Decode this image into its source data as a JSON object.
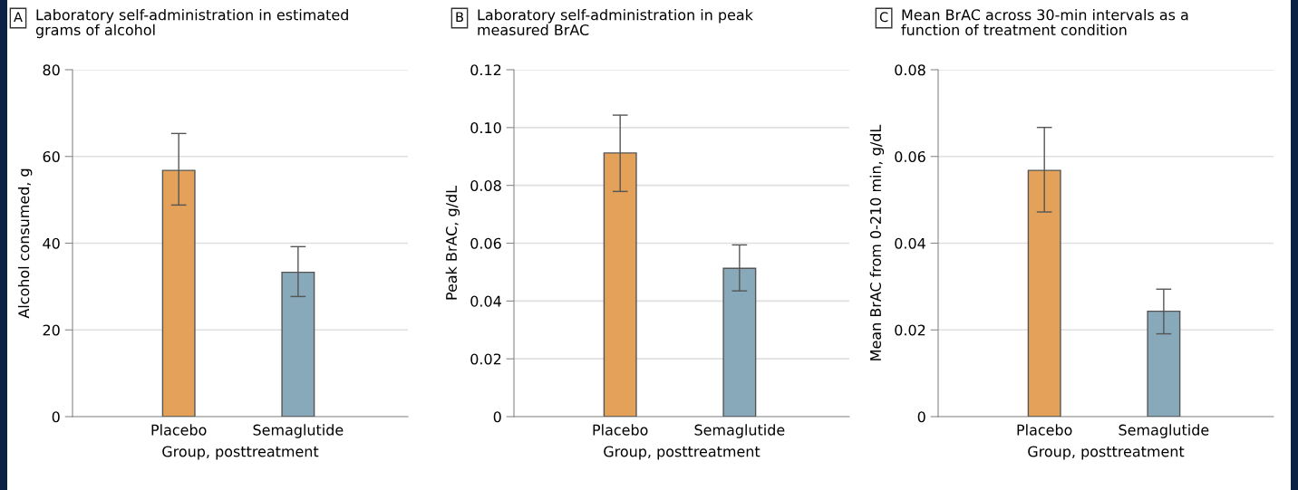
{
  "chart_data": [
    {
      "type": "bar",
      "annotations": [
        "A"
      ],
      "title": "Laboratory self-administration in estimated grams of alcohol",
      "xlabel": "Group, posttreatment",
      "ylabel": "Alcohol consumed, g",
      "categories": [
        "Placebo",
        "Semaglutide"
      ],
      "values": [
        56.8,
        33.3
      ],
      "colors": [
        "#e3a15a",
        "#87a9b9"
      ],
      "errors": [
        [
          48.8,
          65.3
        ],
        [
          27.7,
          39.2
        ]
      ],
      "ylim": [
        0,
        80
      ],
      "yticks": [
        0,
        20,
        40,
        60,
        80
      ],
      "grid": "y"
    },
    {
      "type": "bar",
      "annotations": [
        "B"
      ],
      "title": "Laboratory self-administration in peak measured BrAC",
      "xlabel": "Group, posttreatment",
      "ylabel": "Peak BrAC, g/dL",
      "categories": [
        "Placebo",
        "Semaglutide"
      ],
      "values": [
        0.0912,
        0.0513
      ],
      "colors": [
        "#e3a15a",
        "#87a9b9"
      ],
      "errors": [
        [
          0.0779,
          0.1043
        ],
        [
          0.0435,
          0.0594
        ]
      ],
      "ylim": [
        0,
        0.12
      ],
      "yticks": [
        {
          "value": 0,
          "label": "0"
        },
        {
          "value": 0.02,
          "label": "0.02"
        },
        {
          "value": 0.04,
          "label": "0.04"
        },
        {
          "value": 0.06,
          "label": "0.06"
        },
        {
          "value": 0.08,
          "label": "0.08"
        },
        {
          "value": 0.1,
          "label": "0.10"
        },
        {
          "value": 0.12,
          "label": "0.12"
        }
      ],
      "grid": "y"
    },
    {
      "type": "bar",
      "annotations": [
        "C"
      ],
      "title": "Mean BrAC across 30-min intervals as a function of treatment condition",
      "xlabel": "Group, posttreatment",
      "ylabel": "Mean BrAC from 0-210 min, g/dL",
      "categories": [
        "Placebo",
        "Semaglutide"
      ],
      "values": [
        0.0568,
        0.0243
      ],
      "colors": [
        "#e3a15a",
        "#87a9b9"
      ],
      "errors": [
        [
          0.0472,
          0.0667
        ],
        [
          0.0191,
          0.0294
        ]
      ],
      "ylim": [
        0,
        0.08
      ],
      "yticks": [
        {
          "value": 0,
          "label": "0"
        },
        {
          "value": 0.02,
          "label": "0.02"
        },
        {
          "value": 0.04,
          "label": "0.04"
        },
        {
          "value": 0.06,
          "label": "0.06"
        },
        {
          "value": 0.08,
          "label": "0.08"
        }
      ],
      "grid": "y"
    }
  ]
}
